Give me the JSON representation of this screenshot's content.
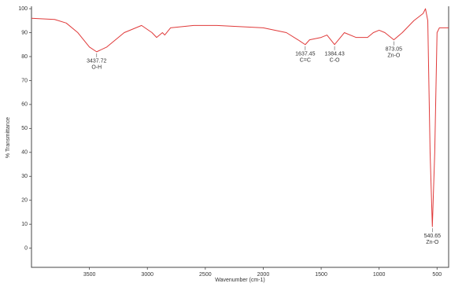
{
  "chart_data": {
    "type": "line",
    "xlabel": "Wavenumber (cm-1)",
    "ylabel": "% Transmittance",
    "x": [
      4000,
      3800,
      3700,
      3600,
      3500,
      3437.72,
      3350,
      3200,
      3050,
      2960,
      2920,
      2870,
      2850,
      2800,
      2600,
      2400,
      2200,
      2000,
      1800,
      1700,
      1637.45,
      1600,
      1500,
      1450,
      1384.43,
      1300,
      1200,
      1100,
      1050,
      1000,
      950,
      873.05,
      800,
      700,
      620,
      600,
      580,
      560,
      540.65,
      520,
      500,
      480,
      430,
      400
    ],
    "series": [
      {
        "name": "Transmittance",
        "color": "#e03a3a",
        "values": [
          96,
          95.5,
          94,
          90,
          84,
          82,
          84,
          90,
          93,
          90,
          88,
          90,
          89,
          92,
          93,
          93,
          92.5,
          92,
          90,
          87,
          85,
          87,
          88,
          89,
          85,
          90,
          88,
          88,
          90,
          91,
          90,
          87,
          90,
          95,
          98,
          100,
          95,
          40,
          9,
          40,
          90,
          92,
          92,
          92
        ]
      }
    ],
    "xlim": [
      4000,
      400
    ],
    "xticks": [
      3500,
      3000,
      2500,
      2000,
      1500,
      1000,
      500
    ],
    "ylim": [
      -8,
      101
    ],
    "yticks": [
      0,
      10,
      20,
      30,
      40,
      50,
      60,
      70,
      80,
      90,
      100
    ],
    "annotations": [
      {
        "x": 3437.72,
        "y": 82,
        "text": [
          "3437.72",
          "O-H"
        ]
      },
      {
        "x": 1637.45,
        "y": 85,
        "text": [
          "1637.45",
          "C=C"
        ]
      },
      {
        "x": 1384.43,
        "y": 85,
        "text": [
          "1384.43",
          "C-O"
        ]
      },
      {
        "x": 873.05,
        "y": 87,
        "text": [
          "873.05",
          "Zn-O"
        ]
      },
      {
        "x": 540.65,
        "y": 9,
        "text": [
          "540.65",
          "Zn-O"
        ]
      }
    ]
  }
}
